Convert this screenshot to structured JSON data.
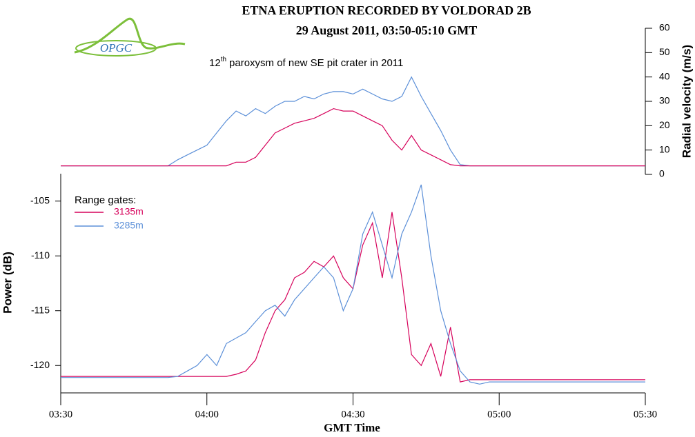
{
  "logo": "OPGC",
  "annotation": {
    "number": "12",
    "suffix": "th",
    "text": "paroxysm of new SE pit crater in 2011"
  },
  "chart_data": [
    {
      "type": "line",
      "title": "ETNA ERUPTION RECORDED BY VOLDORAD 2B",
      "subtitle": "29 August 2011, 03:50-05:10 GMT",
      "y_label": "Radial velocity (m/s)",
      "yaxis_side": "right",
      "xlim": [
        "03:30",
        "05:30"
      ],
      "ylim": [
        0,
        60
      ],
      "yticks": [
        0,
        10,
        20,
        30,
        40,
        50,
        60
      ],
      "x": [
        "03:30",
        "03:32",
        "03:34",
        "03:36",
        "03:38",
        "03:40",
        "03:42",
        "03:44",
        "03:46",
        "03:48",
        "03:50",
        "03:52",
        "03:54",
        "03:56",
        "03:58",
        "04:00",
        "04:02",
        "04:04",
        "04:06",
        "04:08",
        "04:10",
        "04:12",
        "04:14",
        "04:16",
        "04:18",
        "04:20",
        "04:22",
        "04:24",
        "04:26",
        "04:28",
        "04:30",
        "04:32",
        "04:34",
        "04:36",
        "04:38",
        "04:40",
        "04:42",
        "04:44",
        "04:46",
        "04:48",
        "04:50",
        "04:52",
        "04:54",
        "04:56",
        "04:58",
        "05:00",
        "05:02",
        "05:04",
        "05:06",
        "05:08",
        "05:10",
        "05:12",
        "05:14",
        "05:16",
        "05:18",
        "05:20",
        "05:22",
        "05:24",
        "05:26",
        "05:28",
        "05:30"
      ],
      "series": [
        {
          "name": "3285m",
          "color": "#5b8fd8",
          "values": [
            3.5,
            3.5,
            3.5,
            3.5,
            3.5,
            3.5,
            3.5,
            3.5,
            3.5,
            3.5,
            3.5,
            3.5,
            6,
            8,
            10,
            12,
            17,
            22,
            26,
            24,
            27,
            25,
            28,
            30,
            30,
            32,
            31,
            33,
            34,
            34,
            33,
            35,
            33,
            31,
            30,
            32,
            40,
            32,
            25,
            18,
            10,
            4,
            3.5,
            3.5,
            3.5,
            3.5,
            3.5,
            3.5,
            3.5,
            3.5,
            3.5,
            3.5,
            3.5,
            3.5,
            3.5,
            3.5,
            3.5,
            3.5,
            3.5,
            3.5,
            3.5
          ]
        },
        {
          "name": "3135m",
          "color": "#d6005a",
          "values": [
            3.5,
            3.5,
            3.5,
            3.5,
            3.5,
            3.5,
            3.5,
            3.5,
            3.5,
            3.5,
            3.5,
            3.5,
            3.5,
            3.5,
            3.5,
            3.5,
            3.5,
            3.5,
            5,
            5,
            7,
            12,
            17,
            19,
            21,
            22,
            23,
            25,
            27,
            26,
            26,
            24,
            22,
            20,
            14,
            10,
            16,
            10,
            8,
            6,
            4,
            3.5,
            3.5,
            3.5,
            3.5,
            3.5,
            3.5,
            3.5,
            3.5,
            3.5,
            3.5,
            3.5,
            3.5,
            3.5,
            3.5,
            3.5,
            3.5,
            3.5,
            3.5,
            3.5,
            3.5
          ]
        }
      ]
    },
    {
      "type": "line",
      "x_label": "GMT Time",
      "y_label": "Power (dB)",
      "yaxis_side": "left",
      "legend_title": "Range gates:",
      "xlim": [
        "03:30",
        "05:30"
      ],
      "xticks": [
        "03:30",
        "04:00",
        "04:30",
        "05:00",
        "05:30"
      ],
      "ylim": [
        -122.5,
        -102.5
      ],
      "yticks": [
        -120,
        -115,
        -110,
        -105
      ],
      "x": [
        "03:30",
        "03:32",
        "03:34",
        "03:36",
        "03:38",
        "03:40",
        "03:42",
        "03:44",
        "03:46",
        "03:48",
        "03:50",
        "03:52",
        "03:54",
        "03:56",
        "03:58",
        "04:00",
        "04:02",
        "04:04",
        "04:06",
        "04:08",
        "04:10",
        "04:12",
        "04:14",
        "04:16",
        "04:18",
        "04:20",
        "04:22",
        "04:24",
        "04:26",
        "04:28",
        "04:30",
        "04:32",
        "04:34",
        "04:36",
        "04:38",
        "04:40",
        "04:42",
        "04:44",
        "04:46",
        "04:48",
        "04:50",
        "04:52",
        "04:54",
        "04:56",
        "04:58",
        "05:00",
        "05:02",
        "05:04",
        "05:06",
        "05:08",
        "05:10",
        "05:12",
        "05:14",
        "05:16",
        "05:18",
        "05:20",
        "05:22",
        "05:24",
        "05:26",
        "05:28",
        "05:30"
      ],
      "series": [
        {
          "name": "3135m",
          "color": "#d6005a",
          "values": [
            -121,
            -121,
            -121,
            -121,
            -121,
            -121,
            -121,
            -121,
            -121,
            -121,
            -121,
            -121,
            -121,
            -121,
            -121,
            -121,
            -121,
            -121,
            -120.8,
            -120.5,
            -119.5,
            -117,
            -115,
            -114,
            -112,
            -111.5,
            -110.5,
            -111,
            -110,
            -112,
            -113,
            -109,
            -107,
            -112,
            -106,
            -112,
            -119,
            -120,
            -118,
            -121,
            -116.5,
            -121.5,
            -121.3,
            -121.3,
            -121.3,
            -121.3,
            -121.3,
            -121.3,
            -121.3,
            -121.3,
            -121.3,
            -121.3,
            -121.3,
            -121.3,
            -121.3,
            -121.3,
            -121.3,
            -121.3,
            -121.3,
            -121.3,
            -121.3
          ]
        },
        {
          "name": "3285m",
          "color": "#5b8fd8",
          "values": [
            -121.1,
            -121.1,
            -121.1,
            -121.1,
            -121.1,
            -121.1,
            -121.1,
            -121.1,
            -121.1,
            -121.1,
            -121.1,
            -121.1,
            -121,
            -120.5,
            -120,
            -119,
            -120,
            -118,
            -117.5,
            -117,
            -116,
            -115,
            -114.5,
            -115.5,
            -114,
            -113,
            -112,
            -111,
            -112,
            -115,
            -113,
            -108,
            -106,
            -109,
            -112,
            -108,
            -106,
            -103.5,
            -110,
            -115,
            -118,
            -120.5,
            -121.5,
            -121.7,
            -121.5,
            -121.5,
            -121.5,
            -121.5,
            -121.5,
            -121.5,
            -121.5,
            -121.5,
            -121.5,
            -121.5,
            -121.5,
            -121.5,
            -121.5,
            -121.5,
            -121.5,
            -121.5,
            -121.5
          ]
        }
      ]
    }
  ]
}
